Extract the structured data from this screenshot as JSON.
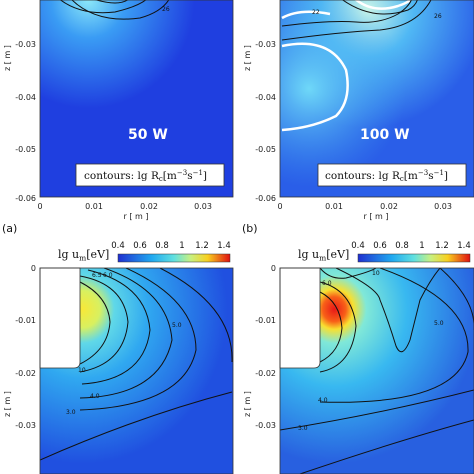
{
  "top_left": {
    "power_label": "50 W",
    "legend_prefix": "contours: lg R",
    "legend_sub": "c",
    "legend_unit": "[m",
    "legend_exp1": "−3",
    "legend_mid": "s",
    "legend_exp2": "−1",
    "legend_end": "]",
    "contour_label": "26",
    "panel_letter": "(a)"
  },
  "top_right": {
    "power_label": "100 W",
    "legend_prefix": "contours: lg R",
    "legend_sub": "c",
    "legend_unit": "[m",
    "legend_exp1": "−3",
    "legend_mid": "s",
    "legend_exp2": "−1",
    "legend_end": "]",
    "contour_labels": [
      "22",
      "26"
    ],
    "panel_letter": "(b)"
  },
  "top_axes": {
    "ylabel": "z [ m ]",
    "xlabel": "r [ m ]",
    "yticks": [
      "-0.03",
      "-0.04",
      "-0.05",
      "-0.06"
    ],
    "xticks": [
      "0",
      "0.01",
      "0.02",
      "0.03"
    ]
  },
  "bottom_colorbar": {
    "label_prefix": "lg u",
    "label_sub": "m",
    "label_unit": "[eV]",
    "ticks": [
      "0.4",
      "0.6",
      "0.8",
      "1",
      "1.2",
      "1.4"
    ]
  },
  "bottom_axes": {
    "ylabel": "z [ m ]",
    "yticks": [
      "0",
      "-0.01",
      "-0.02",
      "-0.03"
    ]
  },
  "bottom_left": {
    "contour_labels": [
      "6.5",
      "6.0",
      "10",
      "5.0",
      "4.0",
      "3.0",
      "6.0"
    ]
  },
  "bottom_right": {
    "contour_labels": [
      "10",
      "6.0",
      "5.0",
      "4.0",
      "3.0"
    ]
  },
  "colors": {
    "field_low": "#1f3fe0",
    "field_mid": "#35c0f0",
    "field_high": "#f0e020",
    "field_peak": "#e02020"
  }
}
